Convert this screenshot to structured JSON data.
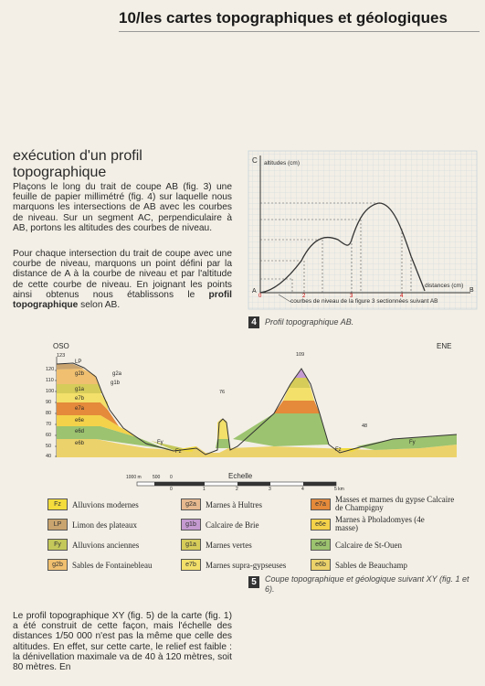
{
  "header": {
    "number": "10/",
    "title": "les cartes topographiques et géologiques"
  },
  "section": {
    "title_line1": "exécution d'un profil",
    "title_line2": "topographique"
  },
  "paragraphs": {
    "p1": "Plaçons le long du trait de coupe AB (fig. 3) une feuille de papier millimétré (fig. 4) sur laquelle nous marquons les intersections de AB avec les courbes de niveau. Sur un segment AC, perpendiculaire à AB, portons les altitudes des courbes de niveau.",
    "p2_start": "Pour chaque intersection du trait de coupe avec une courbe de niveau, marquons un point défini par la distance de A à la courbe de niveau et par l'altitude de cette courbe de niveau. En joignant les points ainsi obtenus nous établissons le ",
    "p2_bold": "profil topographique",
    "p2_end": " selon AB.",
    "p3": "Le profil topographique XY (fig. 5) de la carte (fig. 1) a été construit de cette façon, mais l'échelle des distances 1/50 000 n'est pas la même que celle des altitudes. En effet, sur cette carte, le relief est faible : la dénivellation maximale va de 40 à 120 mètres, soit 80 mètres. En"
  },
  "fig4": {
    "number": "4",
    "caption": "Profil topographique AB.",
    "axis_y_label": "altitudes (cm)",
    "axis_x_label": "distances (cm)",
    "point_c": "C",
    "point_a": "A",
    "point_b": "B",
    "note": "courbes de niveau de la figure 3 sectionnées suivant AB",
    "ticks": [
      "0",
      "2",
      "3",
      "4"
    ]
  },
  "fig5": {
    "number": "5",
    "caption": "Coupe topographique et géologique suivant XY (fig. 1 et 6).",
    "left_label": "OSO",
    "right_label": "ENE",
    "y_ticks": [
      "123",
      "120",
      "110",
      "100",
      "90",
      "80",
      "70",
      "60",
      "50",
      "40"
    ],
    "peak_labels": [
      "109",
      "76",
      "48"
    ],
    "layer_labels": [
      "LP",
      "g2b",
      "g2a",
      "g1b",
      "g1a",
      "e7b",
      "e7a",
      "e6e",
      "e6d",
      "e6b",
      "Fy",
      "Fz",
      "Fz",
      "Fy"
    ],
    "scale_title": "Echelle",
    "scale_left": [
      "1000 m",
      "500",
      "0"
    ],
    "scale_ticks": [
      "0",
      "1",
      "2",
      "3",
      "4",
      "5 km"
    ]
  },
  "legend": [
    {
      "code": "Fz",
      "text": "Alluvions modernes",
      "color": "#f3dc3c"
    },
    {
      "code": "g2a",
      "text": "Marnes à Hultres",
      "color": "#e7b98f"
    },
    {
      "code": "e7a",
      "text": "Masses et marnes du gypse Calcaire de Champigny",
      "color": "#e48a3a"
    },
    {
      "code": "LP",
      "text": "Limon des plateaux",
      "color": "#c9a46e"
    },
    {
      "code": "g1b",
      "text": "Calcaire de Brie",
      "color": "#c59ad1"
    },
    {
      "code": "e6e",
      "text": "Marnes à Pholadomyes (4e masse)",
      "color": "#f4d24a"
    },
    {
      "code": "Fy",
      "text": "Alluvions anciennes",
      "color": "#c4c85a"
    },
    {
      "code": "g1a",
      "text": "Marnes vertes",
      "color": "#d6cc5a"
    },
    {
      "code": "e6d",
      "text": "Calcaire de St-Ouen",
      "color": "#9cc36f"
    },
    {
      "code": "g2b",
      "text": "Sables de Fontainebleau",
      "color": "#f0c070"
    },
    {
      "code": "e7b",
      "text": "Marnes supra-gypseuses",
      "color": "#f3e06a"
    },
    {
      "code": "e6b",
      "text": "Sables de Beauchamp",
      "color": "#ecd26a"
    }
  ]
}
